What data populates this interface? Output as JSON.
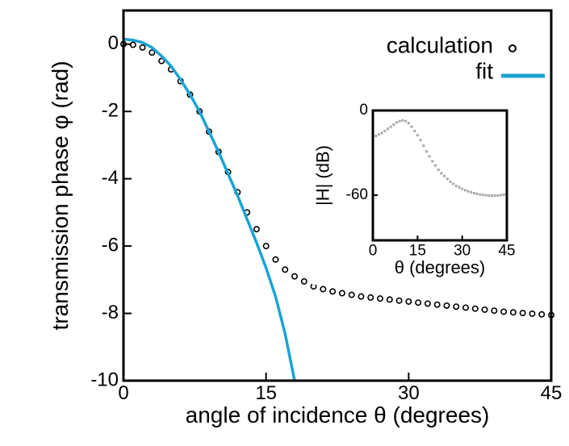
{
  "chart_data": [
    {
      "type": "line",
      "xlabel": "angle of incidence θ (degrees)",
      "ylabel": "transmission phase φ (rad)",
      "xlim": [
        0,
        45
      ],
      "ylim": [
        -10,
        1
      ],
      "xticks": [
        0,
        15,
        30,
        45
      ],
      "yticks": [
        0,
        -2,
        -4,
        -6,
        -8,
        -10
      ],
      "legend": "upper right",
      "series": [
        {
          "name": "calculation",
          "style": "markers",
          "color": "#000000",
          "x": [
            0,
            1,
            2,
            3,
            4,
            5,
            6,
            7,
            8,
            9,
            10,
            11,
            12,
            13,
            14,
            15,
            16,
            17,
            18,
            19,
            20,
            21,
            22,
            23,
            24,
            25,
            26,
            27,
            28,
            29,
            30,
            31,
            32,
            33,
            34,
            35,
            36,
            37,
            38,
            39,
            40,
            41,
            42,
            43,
            44,
            45
          ],
          "values": [
            0,
            -0.02,
            -0.1,
            -0.25,
            -0.5,
            -0.75,
            -1.1,
            -1.5,
            -2.0,
            -2.6,
            -3.2,
            -3.8,
            -4.4,
            -5.0,
            -5.5,
            -6.0,
            -6.4,
            -6.7,
            -6.9,
            -7.05,
            -7.2,
            -7.28,
            -7.35,
            -7.4,
            -7.45,
            -7.5,
            -7.53,
            -7.56,
            -7.59,
            -7.62,
            -7.65,
            -7.68,
            -7.71,
            -7.74,
            -7.77,
            -7.8,
            -7.83,
            -7.86,
            -7.89,
            -7.92,
            -7.95,
            -7.97,
            -7.99,
            -8.01,
            -8.03,
            -8.05
          ]
        },
        {
          "name": "fit",
          "style": "line",
          "color": "#1ba3d4",
          "x": [
            0,
            1,
            2,
            3,
            4,
            5,
            6,
            7,
            8,
            9,
            10,
            11,
            12,
            13,
            14,
            15,
            16,
            17,
            18
          ],
          "values": [
            0.15,
            0.12,
            0.05,
            -0.1,
            -0.35,
            -0.65,
            -1.05,
            -1.5,
            -2.0,
            -2.6,
            -3.2,
            -3.85,
            -4.5,
            -5.2,
            -5.9,
            -6.65,
            -7.5,
            -8.6,
            -10
          ]
        }
      ]
    },
    {
      "type": "line",
      "xlabel": "θ (degrees)",
      "ylabel": "|H| (dB)",
      "xlim": [
        0,
        45
      ],
      "ylim": [
        -92,
        0
      ],
      "xticks": [
        0,
        15,
        30,
        45
      ],
      "yticks": [
        0,
        -60
      ],
      "series": [
        {
          "style": "markers",
          "color": "#777777",
          "x": [
            0,
            1,
            2,
            3,
            4,
            5,
            6,
            7,
            8,
            9,
            10,
            11,
            12,
            13,
            14,
            15,
            16,
            17,
            18,
            19,
            20,
            21,
            22,
            23,
            24,
            25,
            26,
            27,
            28,
            29,
            30,
            31,
            32,
            33,
            34,
            35,
            36,
            37,
            38,
            39,
            40,
            41,
            42,
            43,
            44,
            45
          ],
          "values": [
            -19,
            -18,
            -17,
            -16,
            -14.5,
            -13,
            -11.5,
            -10,
            -8.5,
            -7.5,
            -7,
            -7.5,
            -9,
            -11.5,
            -14.5,
            -17.5,
            -21,
            -25,
            -29,
            -32.5,
            -36,
            -39,
            -42,
            -44.5,
            -46.5,
            -48.5,
            -50.5,
            -52,
            -53.5,
            -54.5,
            -55.5,
            -56.5,
            -57.3,
            -58,
            -58.6,
            -59.1,
            -59.5,
            -59.8,
            -60,
            -60.2,
            -60.3,
            -60.3,
            -60.2,
            -60,
            -59.6,
            -59
          ]
        }
      ]
    }
  ]
}
